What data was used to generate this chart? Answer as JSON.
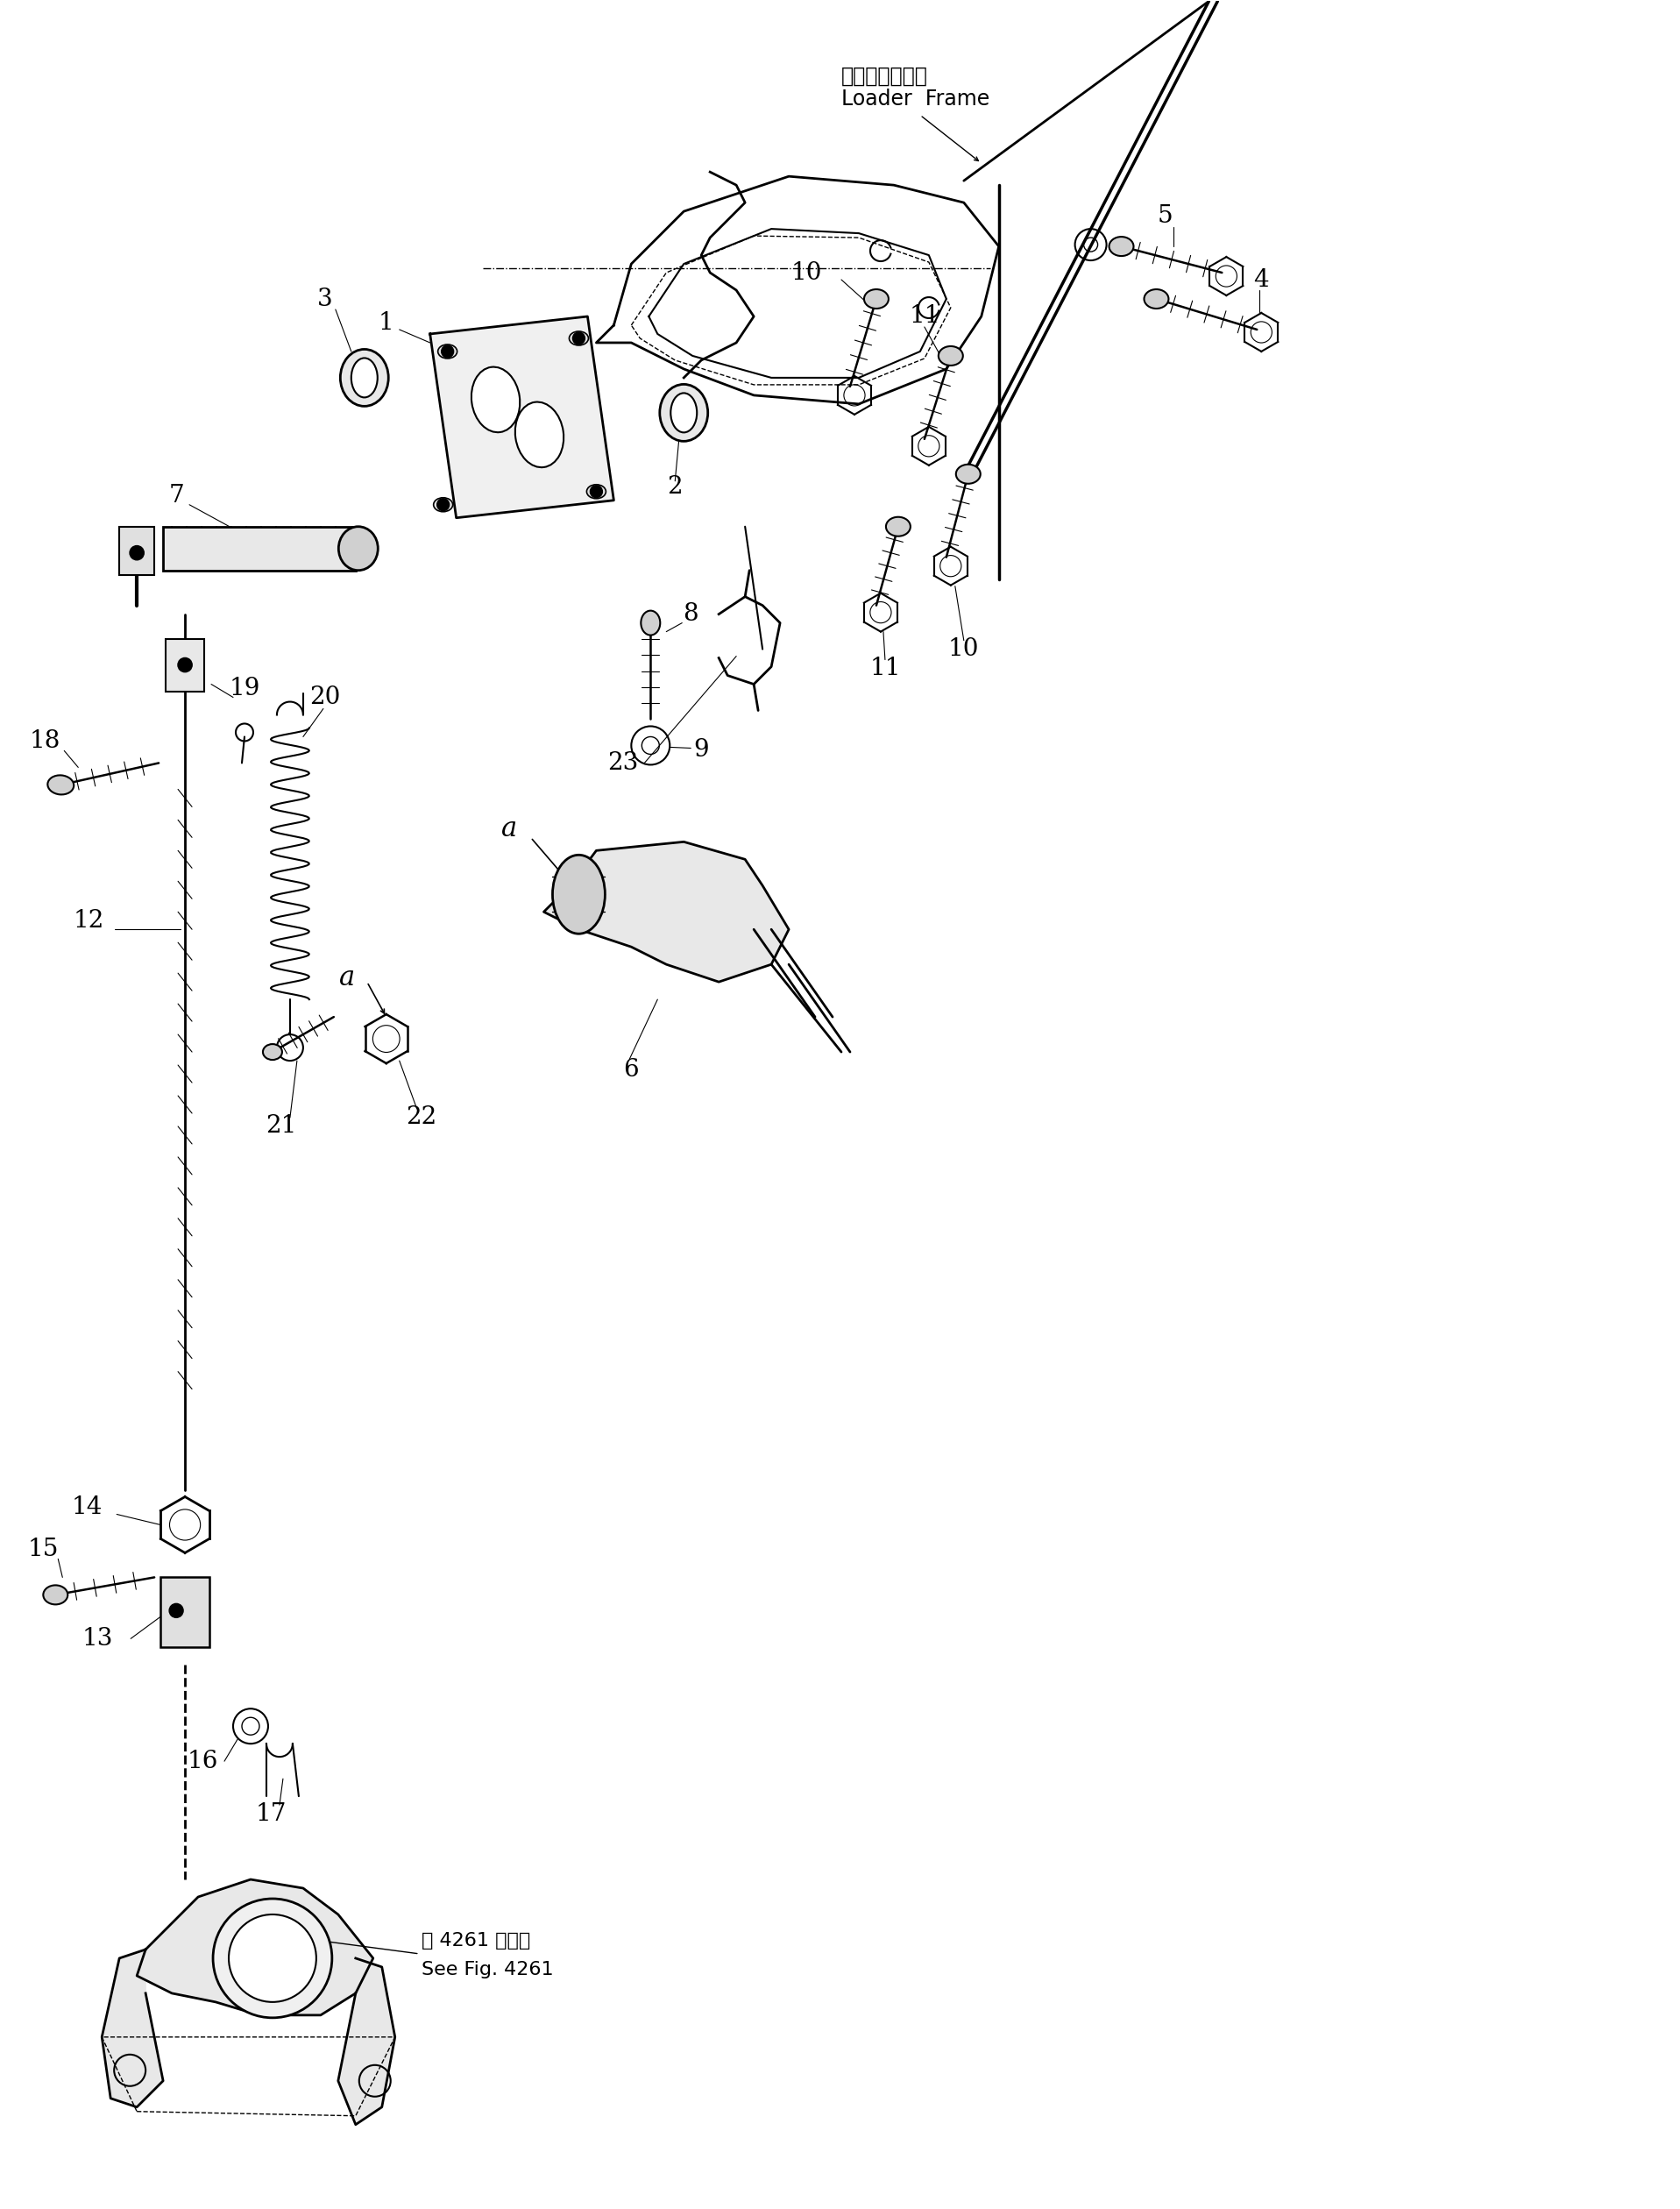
{
  "bg_color": "#ffffff",
  "line_color": "#000000",
  "fig_width": 19.17,
  "fig_height": 25.2,
  "title_japanese": "ローダフレーム",
  "title_english": "Loader  Frame",
  "see_fig_japanese": "第 4261 図参照",
  "see_fig_english": "See Fig. 4261"
}
